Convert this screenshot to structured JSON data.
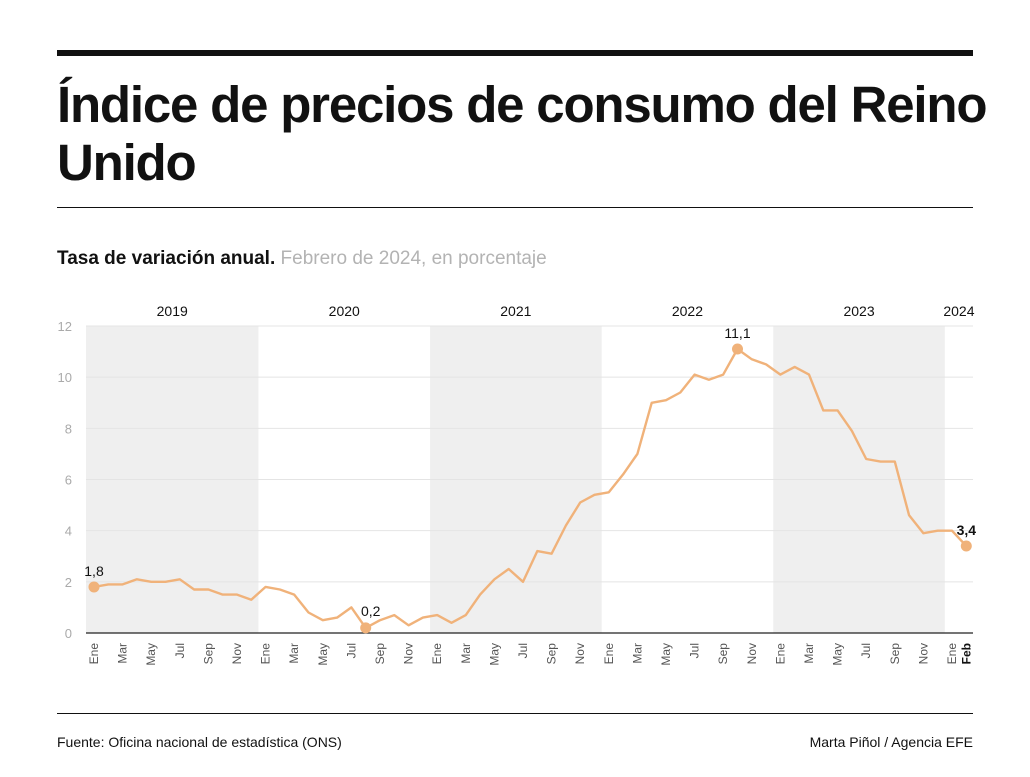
{
  "title": "Índice de precios de consumo del Reino Unido",
  "subtitle_bold": "Tasa de variación anual.",
  "subtitle_light": "Febrero de 2024, en porcentaje",
  "source": "Fuente: Oficina nacional de estadística (ONS)",
  "credit": "Marta Piñol / Agencia EFE",
  "colors": {
    "line": "#f0b27a",
    "shade": "#efefef",
    "grid": "#e4e4e4",
    "axis": "#222222",
    "tick": "#555555"
  },
  "chart_data": {
    "type": "line",
    "title": "Tasa de variación anual.",
    "subtitle": "Febrero de 2024, en porcentaje",
    "ylim": [
      0,
      12
    ],
    "yticks": [
      0,
      2,
      4,
      6,
      8,
      10,
      12
    ],
    "grid": true,
    "years": [
      "2019",
      "2020",
      "2021",
      "2022",
      "2023",
      "2024"
    ],
    "x": [
      "Ene 2019",
      "Feb 2019",
      "Mar 2019",
      "Abr 2019",
      "May 2019",
      "Jun 2019",
      "Jul 2019",
      "Ago 2019",
      "Sep 2019",
      "Oct 2019",
      "Nov 2019",
      "Dic 2019",
      "Ene 2020",
      "Feb 2020",
      "Mar 2020",
      "Abr 2020",
      "May 2020",
      "Jun 2020",
      "Jul 2020",
      "Ago 2020",
      "Sep 2020",
      "Oct 2020",
      "Nov 2020",
      "Dic 2020",
      "Ene 2021",
      "Feb 2021",
      "Mar 2021",
      "Abr 2021",
      "May 2021",
      "Jun 2021",
      "Jul 2021",
      "Ago 2021",
      "Sep 2021",
      "Oct 2021",
      "Nov 2021",
      "Dic 2021",
      "Ene 2022",
      "Feb 2022",
      "Mar 2022",
      "Abr 2022",
      "May 2022",
      "Jun 2022",
      "Jul 2022",
      "Ago 2022",
      "Sep 2022",
      "Oct 2022",
      "Nov 2022",
      "Dic 2022",
      "Ene 2023",
      "Feb 2023",
      "Mar 2023",
      "Abr 2023",
      "May 2023",
      "Jun 2023",
      "Jul 2023",
      "Ago 2023",
      "Sep 2023",
      "Oct 2023",
      "Nov 2023",
      "Dic 2023",
      "Ene 2024",
      "Feb 2024"
    ],
    "x_tick_labels": [
      "Ene",
      "",
      "Mar",
      "",
      "May",
      "",
      "Jul",
      "",
      "Sep",
      "",
      "Nov",
      "",
      "Ene",
      "",
      "Mar",
      "",
      "May",
      "",
      "Jul",
      "",
      "Sep",
      "",
      "Nov",
      "",
      "Ene",
      "",
      "Mar",
      "",
      "May",
      "",
      "Jul",
      "",
      "Sep",
      "",
      "Nov",
      "",
      "Ene",
      "",
      "Mar",
      "",
      "May",
      "",
      "Jul",
      "",
      "Sep",
      "",
      "Nov",
      "",
      "Ene",
      "",
      "Mar",
      "",
      "May",
      "",
      "Jul",
      "",
      "Sep",
      "",
      "Nov",
      "",
      "Ene",
      "Feb"
    ],
    "bold_tick_index": 61,
    "values": [
      1.8,
      1.9,
      1.9,
      2.1,
      2.0,
      2.0,
      2.1,
      1.7,
      1.7,
      1.5,
      1.5,
      1.3,
      1.8,
      1.7,
      1.5,
      0.8,
      0.5,
      0.6,
      1.0,
      0.2,
      0.5,
      0.7,
      0.3,
      0.6,
      0.7,
      0.4,
      0.7,
      1.5,
      2.1,
      2.5,
      2.0,
      3.2,
      3.1,
      4.2,
      5.1,
      5.4,
      5.5,
      6.2,
      7.0,
      9.0,
      9.1,
      9.4,
      10.1,
      9.9,
      10.1,
      11.1,
      10.7,
      10.5,
      10.1,
      10.4,
      10.1,
      8.7,
      8.7,
      7.9,
      6.8,
      6.7,
      6.7,
      4.6,
      3.9,
      4.0,
      4.0,
      3.4
    ],
    "annotations": [
      {
        "index": 0,
        "label": "1,8",
        "bold": false,
        "pos": "above"
      },
      {
        "index": 19,
        "label": "0,2",
        "bold": false,
        "pos": "above-right"
      },
      {
        "index": 45,
        "label": "11,1",
        "bold": false,
        "pos": "above"
      },
      {
        "index": 61,
        "label": "3,4",
        "bold": true,
        "pos": "above"
      }
    ]
  }
}
